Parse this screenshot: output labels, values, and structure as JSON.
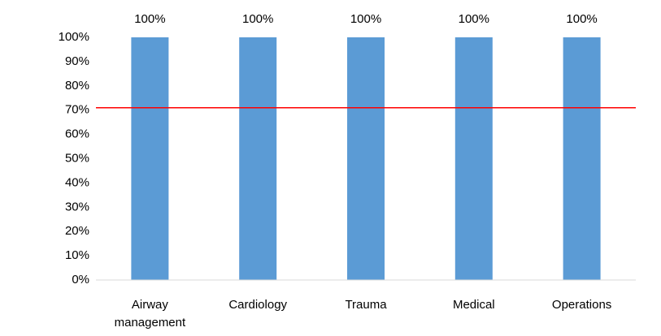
{
  "chart_data": {
    "type": "bar",
    "categories": [
      "Airway management",
      "Cardiology",
      "Trauma",
      "Medical",
      "Operations"
    ],
    "values": [
      100,
      100,
      100,
      100,
      100
    ],
    "value_labels": [
      "100%",
      "100%",
      "100%",
      "100%",
      "100%"
    ],
    "color": "#5b9bd5",
    "ylim": [
      0,
      100
    ],
    "yticks": [
      {
        "value": 0,
        "label": "0%"
      },
      {
        "value": 10,
        "label": "10%"
      },
      {
        "value": 20,
        "label": "20%"
      },
      {
        "value": 30,
        "label": "30%"
      },
      {
        "value": 40,
        "label": "40%"
      },
      {
        "value": 50,
        "label": "50%"
      },
      {
        "value": 60,
        "label": "60%"
      },
      {
        "value": 70,
        "label": "70%"
      },
      {
        "value": 80,
        "label": "80%"
      },
      {
        "value": 90,
        "label": "90%"
      },
      {
        "value": 100,
        "label": "100%"
      }
    ],
    "reference_line": {
      "value": 71,
      "color": "#ff0000"
    },
    "grid": false
  }
}
